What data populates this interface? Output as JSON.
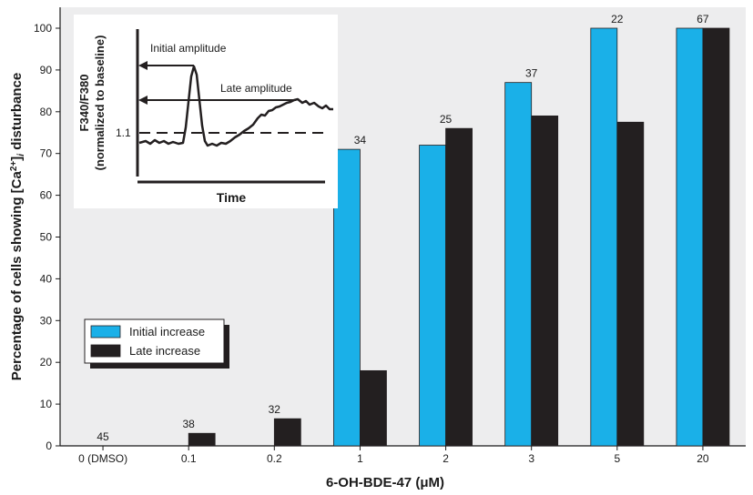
{
  "chart_data": {
    "type": "bar",
    "xlabel_main": "6-OH-BDE-47 (",
    "xlabel_unit": "μM",
    "xlabel_close": ")",
    "ylabel_pre": "Percentage of cells showing [Ca",
    "ylabel_sup": "2+",
    "ylabel_mid": "]",
    "ylabel_sub": "i",
    "ylabel_post": " disturbance",
    "categories": [
      "0 (DMSO)",
      "0.1",
      "0.2",
      "1",
      "2",
      "3",
      "5",
      "20"
    ],
    "n_labels": [
      "45",
      "38",
      "32",
      "34",
      "25",
      "37",
      "22",
      "67"
    ],
    "ylim": [
      0,
      100
    ],
    "yticks": [
      0,
      10,
      20,
      30,
      40,
      50,
      60,
      70,
      80,
      90,
      100
    ],
    "series": [
      {
        "name": "Initial increase",
        "color": "#1ab0e8",
        "values": [
          0,
          0,
          0,
          71,
          72,
          87,
          100,
          100
        ]
      },
      {
        "name": "Late increase",
        "color": "#231f20",
        "values": [
          0,
          3,
          6.5,
          18,
          76,
          79,
          77.5,
          100
        ]
      }
    ],
    "legend_position": "lower-left",
    "grid": false,
    "inset": {
      "ylabel_line1": "F340/F380",
      "ylabel_line2": "(normalized to baseline)",
      "xlabel": "Time",
      "initial_label": "Initial amplitude",
      "late_label": "Late amplitude",
      "baseline_label": "1.1"
    }
  }
}
